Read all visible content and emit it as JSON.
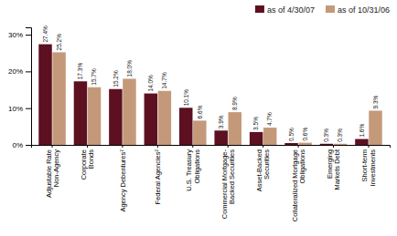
{
  "chart_data": {
    "type": "bar",
    "categories": [
      "Adjustable Rate\nNon-Agency",
      "Corporate\nBonds",
      "Agency Debentures⁷",
      "Federal Agencies²",
      "U.S. Treasury\nObligations",
      "Commercial Mortgage-\nBacked Securities",
      "Asset-Backed\nSecurities",
      "Collateralized Mortgage\nObligations",
      "Emerging\nMarkets Debt",
      "Short-term\nInvestments"
    ],
    "series": [
      {
        "name": "as of 4/30/07",
        "color": "#5C1020",
        "values": [
          27.4,
          17.3,
          15.2,
          14.0,
          10.1,
          3.9,
          3.5,
          0.5,
          0.3,
          1.6
        ],
        "value_labels": [
          "27.4%",
          "17.3%",
          "15.2%",
          "14.0%",
          "10.1%",
          "3.9%",
          "3.5%",
          "0.5%",
          "0.3%",
          "1.6%"
        ]
      },
      {
        "name": "as of 10/31/06",
        "color": "#C4997A",
        "values": [
          25.2,
          15.7,
          18.0,
          14.7,
          6.6,
          8.9,
          4.7,
          0.6,
          0.3,
          9.3
        ],
        "value_labels": [
          "25.2%",
          "15.7%",
          "18.0%",
          "14.7%",
          "6.6%",
          "8.9%",
          "4.7%",
          "0.6%",
          "0.3%",
          "9.3%"
        ]
      }
    ],
    "ylim": [
      0,
      32
    ],
    "yticks": [
      {
        "value": 0,
        "label": "0%"
      },
      {
        "value": 10,
        "label": "10%"
      },
      {
        "value": 20,
        "label": "20%"
      },
      {
        "value": 30,
        "label": "30%"
      }
    ],
    "grid": false,
    "legend": "top",
    "data_labels": true
  }
}
